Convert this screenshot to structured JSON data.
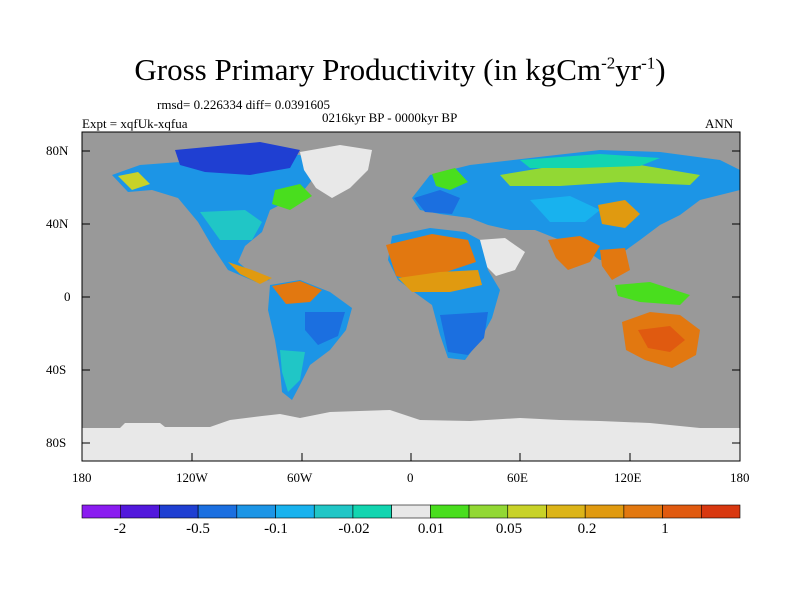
{
  "title": {
    "main": "Gross Primary Productivity (in kgCm",
    "sup1": "-2",
    "mid": "yr",
    "sup2": "-1",
    "end": ")"
  },
  "stats": "rmsd= 0.226334 diff= 0.0391605",
  "expt": "Expt = xqfUk-xqfua",
  "period": "0216kyr BP - 0000kyr BP",
  "season": "ANN",
  "axes": {
    "lat_labels": [
      "80N",
      "40N",
      "0",
      "40S",
      "80S"
    ],
    "lon_labels": [
      "180",
      "120W",
      "60W",
      "0",
      "60E",
      "120E",
      "180"
    ]
  },
  "colorbar": {
    "colors": [
      "#8a1cf0",
      "#5218dc",
      "#1f3fd2",
      "#1b6fe0",
      "#1c95e6",
      "#18b2ee",
      "#20c6c6",
      "#12d5b0",
      "#e8e8e8",
      "#49de1e",
      "#92d834",
      "#c8d228",
      "#dcb418",
      "#e09a10",
      "#e27810",
      "#e05a10",
      "#d83810"
    ],
    "labels": [
      "-2",
      "-0.5",
      "-0.1",
      "-0.02",
      "0.01",
      "0.05",
      "0.2",
      "1"
    ]
  }
}
